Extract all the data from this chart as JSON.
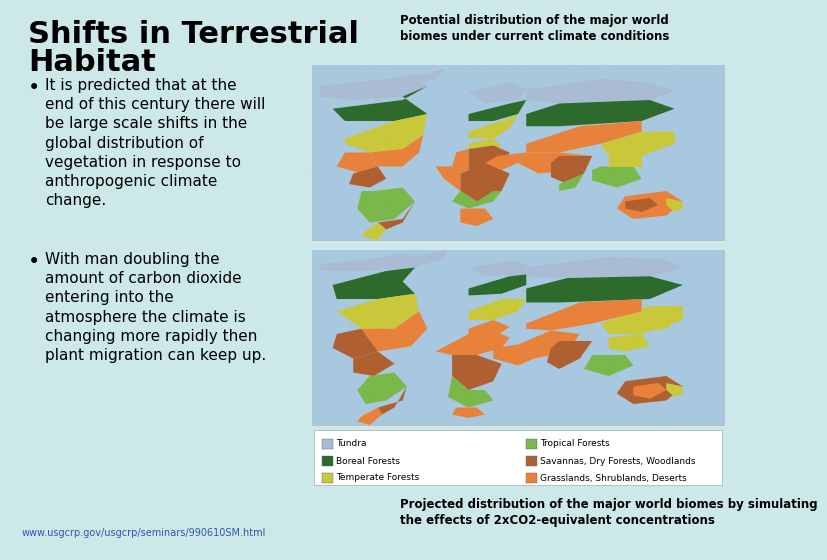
{
  "background_color": "#cce8e8",
  "title_line1": "Shifts in Terrestrial",
  "title_line2": "Habitat",
  "title_fontsize": 22,
  "title_color": "#000000",
  "map_caption_top": "Potential distribution of the major world\nbiomes under current climate conditions",
  "map_caption_bottom": "Projected distribution of the major world biomes by simulating\nthe effects of 2xCO2-equivalent concentrations",
  "bullet1": "It is predicted that at the\nend of this century there will\nbe large scale shifts in the\nglobal distribution of\nvegetation in response to\nanthropogenic climate\nchange.",
  "bullet2": "With man doubling the\namount of carbon dioxide\nentering into the\natmosphere the climate is\nchanging more rapidly then\nplant migration can keep up.",
  "url": "www.usgcrp.gov/usgcrp/seminars/990610SM.html",
  "legend_items_col1": [
    {
      "color": "#aabbd4",
      "label": "Tundra"
    },
    {
      "color": "#2d6b2d",
      "label": "Boreal Forests"
    },
    {
      "color": "#c8c83c",
      "label": "Temperate Forests"
    }
  ],
  "legend_items_col2": [
    {
      "color": "#7ab84a",
      "label": "Tropical Forests"
    },
    {
      "color": "#b06030",
      "label": "Savannas, Dry Forests, Woodlands"
    },
    {
      "color": "#e8823a",
      "label": "Grasslands, Shrublands, Deserts"
    }
  ],
  "text_fontsize": 11,
  "bullet_fontsize": 11,
  "url_fontsize": 7,
  "caption_fontsize": 8
}
